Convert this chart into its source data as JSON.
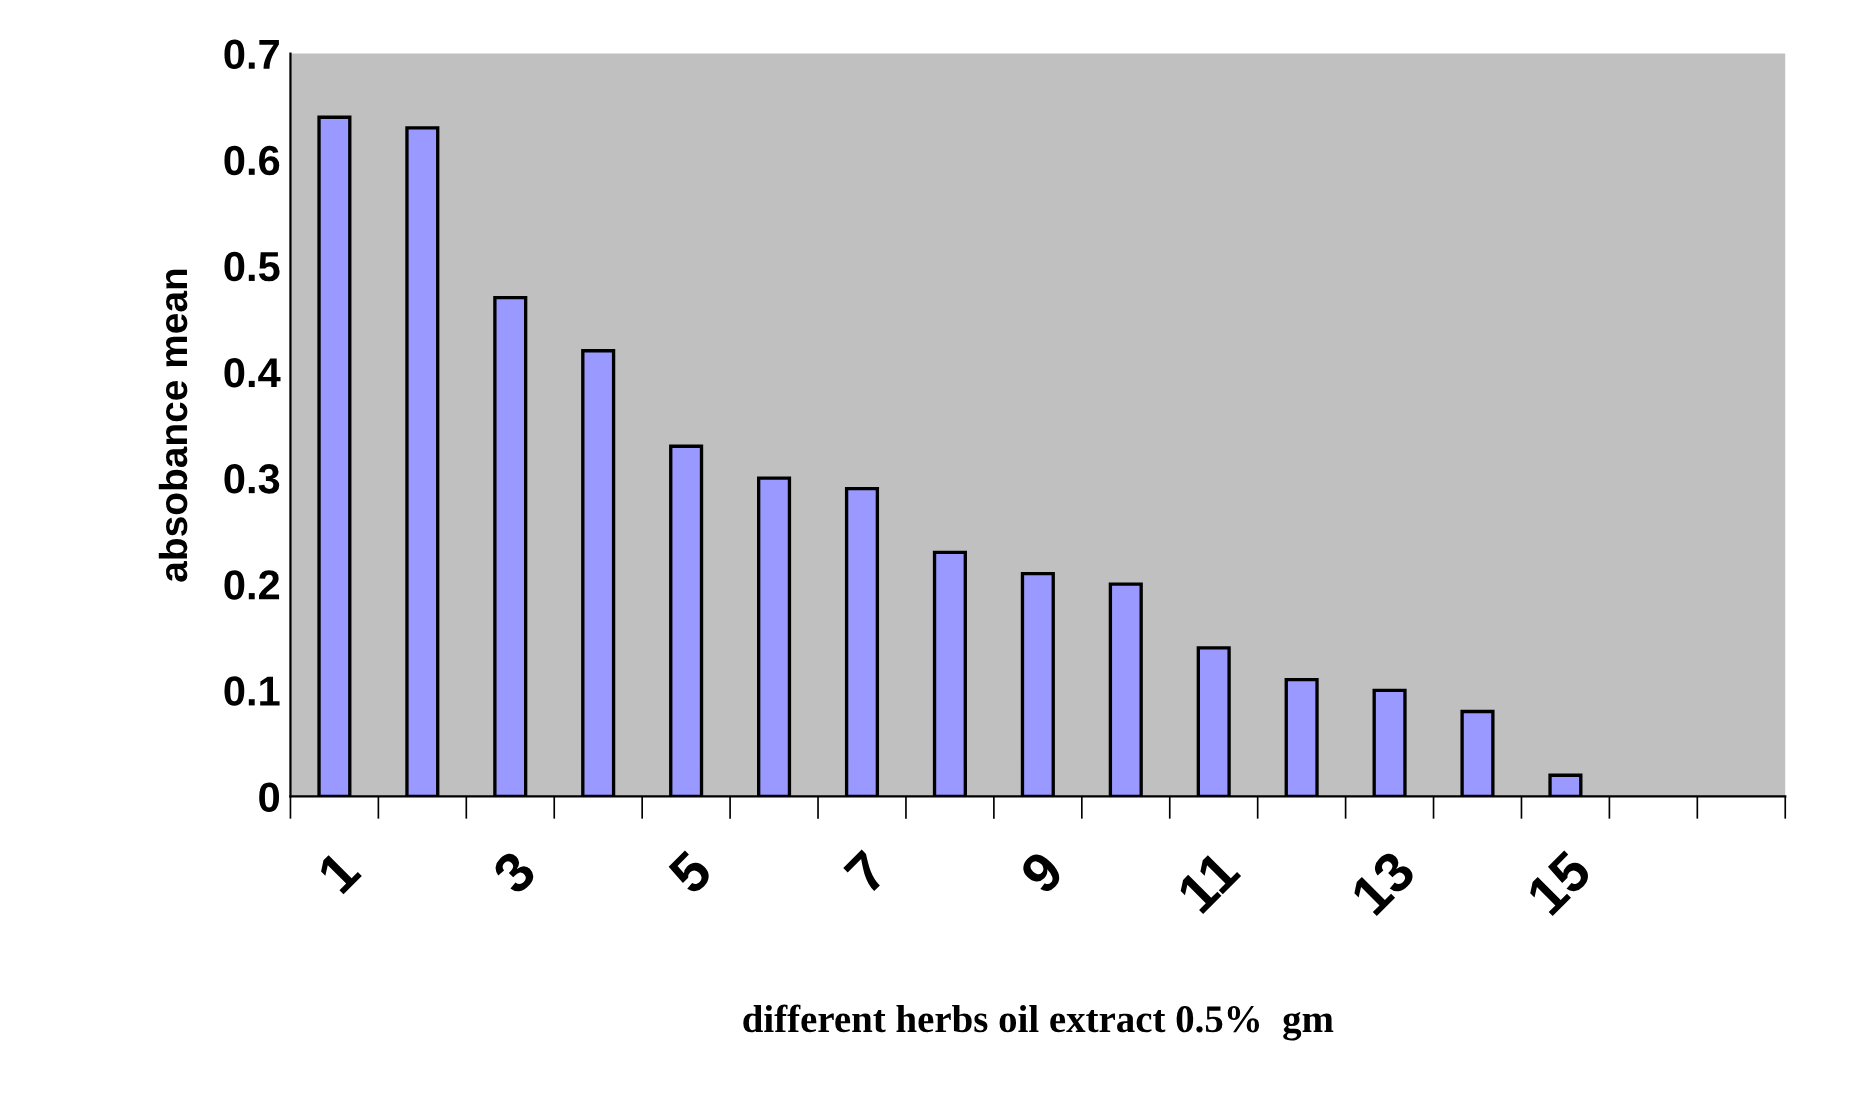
{
  "chart_data": {
    "type": "bar",
    "xlabel": "different herbs oil extract 0.5%  gm",
    "ylabel": "absobance mean",
    "categories": [
      "1",
      null,
      "3",
      null,
      "5",
      null,
      "7",
      null,
      "9",
      null,
      "11",
      null,
      "13",
      null,
      "15",
      null,
      null
    ],
    "values": [
      0.64,
      0.63,
      0.47,
      0.42,
      0.33,
      0.3,
      0.29,
      0.23,
      0.21,
      0.2,
      0.14,
      0.11,
      0.1,
      0.08,
      0.02,
      null,
      null
    ],
    "color": "#9999ff",
    "ylim": [
      0,
      0.7
    ],
    "yticks": [
      0,
      0.1,
      0.2,
      0.3,
      0.4,
      0.5,
      0.6,
      0.7
    ],
    "grid": false,
    "legend": false
  }
}
